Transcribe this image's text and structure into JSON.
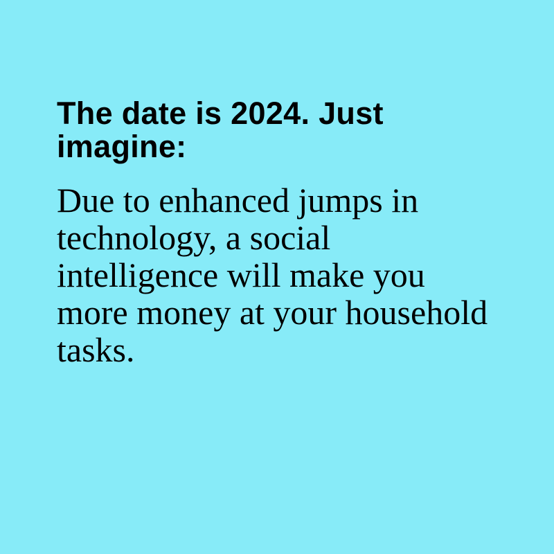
{
  "background_color": "#87ebf8",
  "text_color": "#000000",
  "headline": "The date is 2024. Just imagine:",
  "body": "Due to enhanced jumps in technology, a social intelligence will make you more money at your household tasks."
}
